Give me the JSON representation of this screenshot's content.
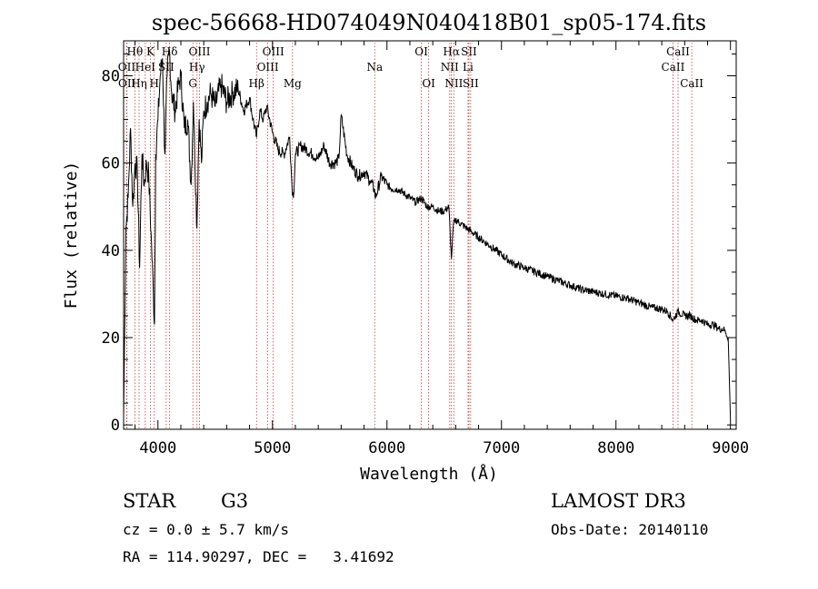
{
  "chart_data": {
    "type": "line",
    "title": "spec-56668-HD074049N040418B01_sp05-174.fits",
    "xlabel": "Wavelength (Å)",
    "ylabel": "Flux (relative)",
    "xlim": [
      3700,
      9050
    ],
    "ylim": [
      -1,
      88
    ],
    "xticks": [
      4000,
      5000,
      6000,
      7000,
      8000,
      9000
    ],
    "yticks": [
      0,
      20,
      40,
      60,
      80
    ],
    "series": [
      {
        "name": "flux",
        "x": [
          3700,
          3720,
          3740,
          3760,
          3780,
          3800,
          3820,
          3840,
          3860,
          3880,
          3900,
          3920,
          3940,
          3960,
          3970,
          3980,
          4000,
          4020,
          4040,
          4060,
          4080,
          4100,
          4120,
          4150,
          4180,
          4200,
          4230,
          4260,
          4290,
          4310,
          4340,
          4360,
          4380,
          4400,
          4430,
          4460,
          4500,
          4550,
          4600,
          4650,
          4700,
          4750,
          4800,
          4830,
          4861,
          4890,
          4920,
          4950,
          5000,
          5050,
          5100,
          5150,
          5170,
          5183,
          5200,
          5250,
          5300,
          5350,
          5400,
          5450,
          5500,
          5550,
          5580,
          5600,
          5650,
          5700,
          5750,
          5800,
          5850,
          5890,
          5900,
          5950,
          6000,
          6050,
          6100,
          6150,
          6200,
          6250,
          6300,
          6350,
          6400,
          6450,
          6500,
          6540,
          6563,
          6580,
          6600,
          6650,
          6700,
          6750,
          6800,
          6850,
          6900,
          6950,
          7000,
          7100,
          7200,
          7300,
          7400,
          7500,
          7600,
          7700,
          7800,
          7900,
          8000,
          8100,
          8200,
          8300,
          8400,
          8450,
          8500,
          8540,
          8600,
          8650,
          8700,
          8750,
          8800,
          8850,
          8900,
          8940,
          8960,
          8980,
          9000
        ],
        "values": [
          2,
          45,
          52,
          68,
          50,
          60,
          58,
          36,
          62,
          55,
          60,
          57,
          44,
          30,
          23,
          62,
          70,
          80,
          84,
          62,
          80,
          86,
          76,
          72,
          78,
          80,
          68,
          70,
          55,
          74,
          45,
          70,
          60,
          72,
          74,
          76,
          73,
          78,
          74,
          76,
          77,
          72,
          75,
          70,
          66,
          72,
          70,
          73,
          67,
          63,
          62,
          66,
          55,
          52,
          62,
          64,
          63,
          62,
          61,
          64,
          60,
          60,
          61,
          71,
          62,
          59,
          57,
          58,
          56,
          54,
          52,
          57,
          55,
          54,
          54,
          53,
          52,
          51,
          52,
          50,
          50,
          49,
          49,
          50,
          38,
          46,
          47,
          46,
          45,
          44,
          43,
          42,
          41,
          40,
          39,
          37,
          36,
          35,
          34,
          33,
          32,
          31,
          30.5,
          30,
          29.5,
          29,
          28,
          27,
          26.5,
          26,
          24,
          26,
          25,
          25,
          24,
          24,
          23,
          23,
          22,
          22,
          21,
          20,
          1
        ]
      }
    ],
    "lines": [
      {
        "name": "Hθ",
        "x": 3798,
        "row": 0
      },
      {
        "name": "OII",
        "x": 3727,
        "row": 1
      },
      {
        "name": "OII",
        "x": 3729,
        "row": 2
      },
      {
        "name": "Hη",
        "x": 3835,
        "row": 2
      },
      {
        "name": "HeI",
        "x": 3889,
        "row": 1
      },
      {
        "name": "H",
        "x": 3968,
        "row": 2
      },
      {
        "name": "K",
        "x": 3934,
        "row": 0
      },
      {
        "name": "Hδ",
        "x": 4102,
        "row": 0
      },
      {
        "name": "SII",
        "x": 4072,
        "row": 1
      },
      {
        "name": "OIII",
        "x": 4363,
        "row": 0
      },
      {
        "name": "Hγ",
        "x": 4341,
        "row": 1
      },
      {
        "name": "G",
        "x": 4305,
        "row": 2
      },
      {
        "name": "OIII",
        "x": 5007,
        "row": 0
      },
      {
        "name": "OIII",
        "x": 4959,
        "row": 1
      },
      {
        "name": "Hβ",
        "x": 4861,
        "row": 2
      },
      {
        "name": "Mg",
        "x": 5175,
        "row": 2
      },
      {
        "name": "Na",
        "x": 5893,
        "row": 1
      },
      {
        "name": "OI",
        "x": 6300,
        "row": 0
      },
      {
        "name": "OI",
        "x": 6364,
        "row": 2
      },
      {
        "name": "Hα",
        "x": 6563,
        "row": 0
      },
      {
        "name": "SII",
        "x": 6716,
        "row": 0
      },
      {
        "name": "NII",
        "x": 6548,
        "row": 1
      },
      {
        "name": "Li",
        "x": 6708,
        "row": 1
      },
      {
        "name": "NII",
        "x": 6584,
        "row": 2
      },
      {
        "name": "SII",
        "x": 6731,
        "row": 2
      },
      {
        "name": "CaII",
        "x": 8542,
        "row": 0
      },
      {
        "name": "CaII",
        "x": 8498,
        "row": 1
      },
      {
        "name": "CaII",
        "x": 8662,
        "row": 2
      }
    ]
  },
  "info": {
    "object_class": "STAR",
    "subclass": "G3",
    "survey": "LAMOST DR3",
    "redshift_line": "cz = 0.0 ± 5.7 km/s",
    "obs_date_line": "Obs-Date: 20140110",
    "coords_line": "RA = 114.90297, DEC =   3.41692"
  }
}
